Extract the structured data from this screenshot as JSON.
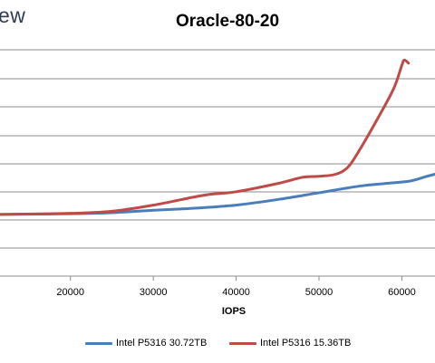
{
  "header": {
    "logo_fragment": "ew"
  },
  "chart_data": {
    "type": "line",
    "title": "Oracle-80-20",
    "xlabel": "IOPS",
    "ylabel": "",
    "x_ticks": [
      "20000",
      "30000",
      "40000",
      "50000",
      "60000"
    ],
    "x_tick_values": [
      20000,
      30000,
      40000,
      50000,
      60000
    ],
    "xlim": [
      11500,
      64000
    ],
    "y_gridline_count": 9,
    "grid": true,
    "legend_position": "bottom",
    "series": [
      {
        "name": "Intel P5316 30.72TB",
        "color": "#4a7ebb",
        "x": [
          11500,
          20000,
          25000,
          30000,
          35000,
          40000,
          45000,
          50000,
          55000,
          58000,
          61000,
          63000,
          64000
        ],
        "y": [
          0.0,
          0.03,
          0.08,
          0.2,
          0.3,
          0.45,
          0.72,
          1.05,
          1.38,
          1.5,
          1.62,
          1.85,
          1.95
        ]
      },
      {
        "name": "Intel P5316 15.36TB",
        "color": "#be4b48",
        "x": [
          11500,
          20000,
          25000,
          30000,
          35000,
          37000,
          40000,
          45000,
          48000,
          50000,
          52000,
          53500,
          55000,
          57000,
          59000,
          60000,
          60300,
          60800
        ],
        "y": [
          0.0,
          0.05,
          0.15,
          0.45,
          0.85,
          0.98,
          1.1,
          1.5,
          1.8,
          1.85,
          1.95,
          2.3,
          3.2,
          4.6,
          6.1,
          7.25,
          7.5,
          7.35
        ]
      }
    ]
  }
}
